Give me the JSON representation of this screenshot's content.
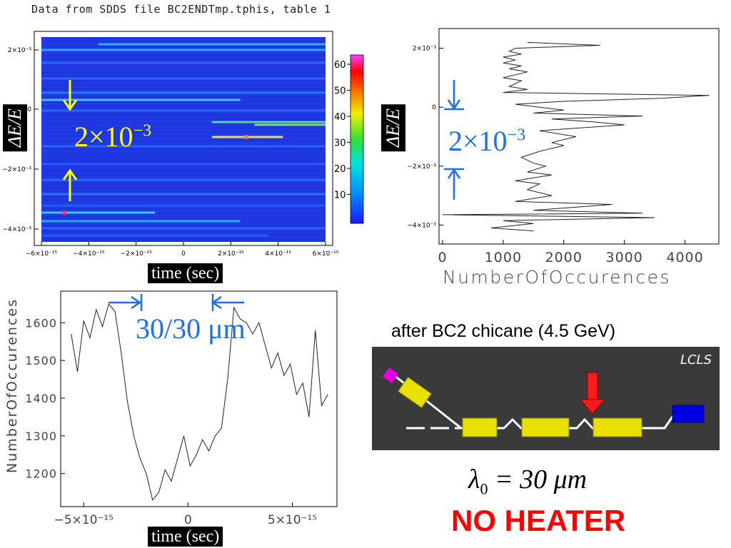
{
  "header": {
    "file_title": "Data from SDDS file BC2ENDTmp.tphis, table 1"
  },
  "heatmap": {
    "ylabel": "ΔE/E",
    "xlabel": "time (sec)",
    "xticks": [
      "−6×10⁻¹⁵",
      "−4×10⁻¹⁵",
      "−2×10⁻¹⁵",
      "0",
      "2×10⁻¹⁵",
      "4×10⁻¹⁵",
      "6×10⁻¹⁵"
    ],
    "yticks": [
      "2×10⁻³",
      "0",
      "−2×10⁻³",
      "−4×10⁻³"
    ],
    "colorbar_ticks": [
      "60",
      "50",
      "40",
      "30",
      "20",
      "10"
    ],
    "annotation": "2×10",
    "annotation_exp": "−3",
    "annotation_color": "#ffff00"
  },
  "projection": {
    "ylabel": "ΔE/E",
    "xlabel": "NumberOfOccurences",
    "xticks": [
      "0",
      "1000",
      "2000",
      "3000",
      "4000"
    ],
    "yticks": [
      "2×10⁻³",
      "0",
      "−2×10⁻³",
      "−4×10⁻³"
    ],
    "annotation": "2×10",
    "annotation_exp": "−3",
    "annotation_color": "#1e6fe8"
  },
  "profile": {
    "ylabel": "NumberOfOccurences",
    "xlabel": "time (sec)",
    "xticks": [
      "−5×10⁻¹⁵",
      "0",
      "5×10⁻¹⁵"
    ],
    "yticks": [
      "1600",
      "1500",
      "1400",
      "1300",
      "1200"
    ],
    "annotation": "30/30 μm"
  },
  "beamline": {
    "title": "after BC2 chicane (4.5 GeV)",
    "tag": "LCLS",
    "lambda_text": "λ",
    "lambda_sub": "0",
    "lambda_rest": " = 30 μm",
    "heater_label": "NO HEATER",
    "heater_color": "#ff0000"
  },
  "chart_data": [
    {
      "type": "heatmap",
      "xlabel": "time (sec)",
      "ylabel": "ΔE/E",
      "xlim": [
        -6e-15,
        6e-15
      ],
      "ylim": [
        -0.0045,
        0.0023
      ],
      "colorbar_range": [
        0,
        65
      ]
    },
    {
      "type": "line",
      "orientation": "horizontal-projection",
      "xlabel": "NumberOfOccurences",
      "ylabel": "ΔE/E",
      "xlim": [
        0,
        4500
      ],
      "ylim": [
        -0.0045,
        0.0025
      ],
      "points": [
        [
          1400,
          0.0022
        ],
        [
          2600,
          0.0021
        ],
        [
          1200,
          0.002
        ],
        [
          1100,
          0.0019
        ],
        [
          1300,
          0.0018
        ],
        [
          1000,
          0.0017
        ],
        [
          1200,
          0.0016
        ],
        [
          1000,
          0.0015
        ],
        [
          1300,
          0.0014
        ],
        [
          1100,
          0.0013
        ],
        [
          1400,
          0.0012
        ],
        [
          1200,
          0.0011
        ],
        [
          1000,
          0.001
        ],
        [
          1300,
          0.0009
        ],
        [
          1200,
          0.0008
        ],
        [
          1100,
          0.0007
        ],
        [
          1400,
          0.0006
        ],
        [
          1000,
          0.0005
        ],
        [
          4400,
          0.0004
        ],
        [
          3600,
          0.0003
        ],
        [
          2000,
          0.0002
        ],
        [
          1200,
          0.0001
        ],
        [
          1600,
          0.0
        ],
        [
          2000,
          -0.0001
        ],
        [
          1500,
          -0.0002
        ],
        [
          3300,
          -0.0003
        ],
        [
          1800,
          -0.0004
        ],
        [
          2500,
          -0.0005
        ],
        [
          3000,
          -0.0006
        ],
        [
          1600,
          -0.0008
        ],
        [
          2200,
          -0.001
        ],
        [
          1800,
          -0.0012
        ],
        [
          2000,
          -0.0013
        ],
        [
          1600,
          -0.0015
        ],
        [
          1300,
          -0.0017
        ],
        [
          1500,
          -0.0019
        ],
        [
          1700,
          -0.002
        ],
        [
          1400,
          -0.0022
        ],
        [
          1800,
          -0.0023
        ],
        [
          1200,
          -0.0025
        ],
        [
          1600,
          -0.0026
        ],
        [
          1400,
          -0.0028
        ],
        [
          1800,
          -0.003
        ],
        [
          1200,
          -0.0032
        ],
        [
          2800,
          -0.0033
        ],
        [
          1500,
          -0.0035
        ],
        [
          3300,
          -0.0036
        ],
        [
          0,
          -0.00365
        ],
        [
          3500,
          -0.00375
        ],
        [
          1000,
          -0.00385
        ],
        [
          1500,
          -0.00395
        ],
        [
          800,
          -0.0041
        ],
        [
          1500,
          -0.0042
        ]
      ]
    },
    {
      "type": "line",
      "xlabel": "time (sec)",
      "ylabel": "NumberOfOccurences",
      "xlim": [
        -6e-15,
        7e-15
      ],
      "ylim": [
        1120,
        1680
      ],
      "x": [
        -5.6e-15,
        -5.3e-15,
        -5e-15,
        -4.7e-15,
        -4.4e-15,
        -4.1e-15,
        -3.8e-15,
        -3.5e-15,
        -3.2e-15,
        -2.9e-15,
        -2.6e-15,
        -2.3e-15,
        -2e-15,
        -1.7e-15,
        -1.4e-15,
        -1.1e-15,
        -8e-16,
        -5e-16,
        -2e-16,
        1e-16,
        4e-16,
        7e-16,
        1e-15,
        1.3e-15,
        1.6e-15,
        1.9e-15,
        2.2e-15,
        2.5e-15,
        2.8e-15,
        3.1e-15,
        3.4e-15,
        3.7e-15,
        4e-15,
        4.3e-15,
        4.6e-15,
        4.9e-15,
        5.2e-15,
        5.5e-15,
        5.8e-15,
        6.1e-15,
        6.4e-15,
        6.7e-15
      ],
      "y": [
        1570,
        1470,
        1605,
        1560,
        1635,
        1590,
        1650,
        1630,
        1520,
        1390,
        1300,
        1240,
        1200,
        1130,
        1150,
        1210,
        1180,
        1240,
        1300,
        1220,
        1250,
        1290,
        1260,
        1300,
        1320,
        1450,
        1640,
        1610,
        1600,
        1570,
        1600,
        1540,
        1480,
        1520,
        1460,
        1490,
        1410,
        1440,
        1350,
        1580,
        1380,
        1410
      ]
    }
  ]
}
